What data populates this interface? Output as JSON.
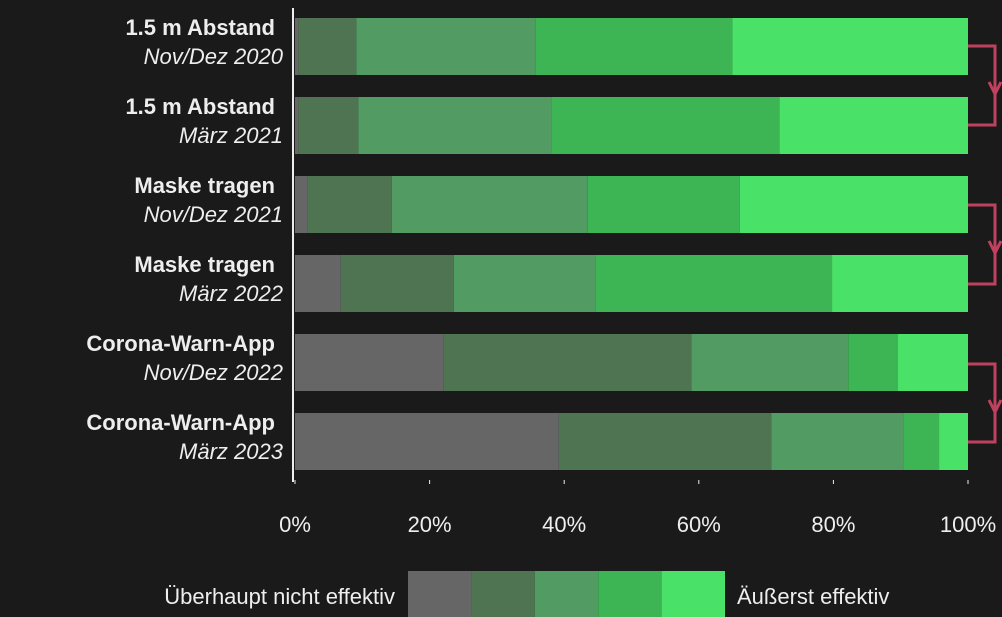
{
  "chart_data": {
    "type": "stacked_bar_horizontal",
    "categories": [
      [
        "1.5 m Abstand",
        "Nov/Dez 2020"
      ],
      [
        "1.5 m Abstand",
        "März 2021"
      ],
      [
        "Maske tragen",
        "Nov/Dez 2021"
      ],
      [
        "Maske tragen",
        "März 2022"
      ],
      [
        "Corona-Warn-App",
        "Nov/Dez 2022"
      ],
      [
        "Corona-Warn-App",
        "März 2023"
      ]
    ],
    "series": [
      {
        "color": "#666666",
        "values": [
          0.5,
          0.5,
          1.9,
          6.8,
          22.1,
          39.2
        ]
      },
      {
        "color": "#4e7452",
        "values": [
          8.6,
          8.9,
          12.5,
          16.8,
          36.8,
          31.6
        ]
      },
      {
        "color": "#529c63",
        "values": [
          26.6,
          28.7,
          29.1,
          21.0,
          23.3,
          19.6
        ]
      },
      {
        "color": "#3db554",
        "values": [
          29.3,
          33.9,
          22.6,
          35.2,
          7.4,
          5.3
        ]
      },
      {
        "color": "#4ae168",
        "values": [
          35.0,
          28.0,
          33.9,
          20.2,
          10.4,
          4.3
        ]
      }
    ],
    "xlim": [
      0,
      100
    ],
    "xticks": [
      {
        "value": 0,
        "label": "0%"
      },
      {
        "value": 20,
        "label": "20%"
      },
      {
        "value": 40,
        "label": "40%"
      },
      {
        "value": 60,
        "label": "60%"
      },
      {
        "value": 80,
        "label": "80%"
      },
      {
        "value": 100,
        "label": "100%"
      }
    ],
    "legend_low": "Überhaupt nicht effektiv",
    "legend_high": "Äußerst effektiv"
  }
}
